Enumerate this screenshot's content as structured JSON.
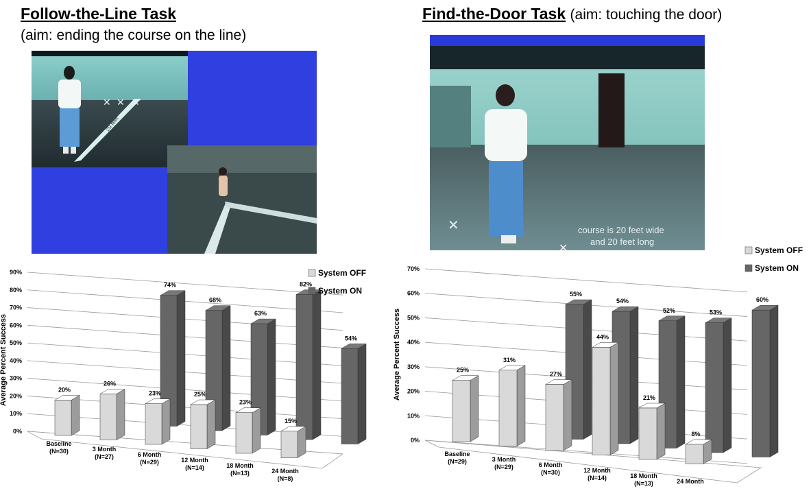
{
  "left": {
    "heading": "Follow-the-Line Task",
    "subheading": "(aim: ending the course on the line)",
    "photo_caption": "20 feet"
  },
  "right": {
    "heading": "Find-the-Door Task",
    "heading_suffix": "(aim: touching the door)",
    "photo_caption_line1": "course is 20 feet wide",
    "photo_caption_line2": "and 20 feet long"
  },
  "chart_data": [
    {
      "type": "bar",
      "title": "",
      "xlabel": "",
      "ylabel": "Average Percent Success",
      "ylim": [
        0,
        90
      ],
      "yticks": [
        "0%",
        "10%",
        "20%",
        "30%",
        "40%",
        "50%",
        "60%",
        "70%",
        "80%",
        "90%"
      ],
      "categories": [
        [
          "Baseline",
          "(N=30)"
        ],
        [
          "3 Month",
          "(N=27)"
        ],
        [
          "6 Month",
          "(N=29)"
        ],
        [
          "12 Month",
          "(N=14)"
        ],
        [
          "18 Month",
          "(N=13)"
        ],
        [
          "24 Month",
          "(N=8)"
        ]
      ],
      "legend_position": "top-right",
      "grid": true,
      "series": [
        {
          "name": "System OFF",
          "color": "#d9d9d9",
          "values": [
            20,
            26,
            23,
            25,
            23,
            15
          ],
          "labels": [
            "20%",
            "26%",
            "23%",
            "25%",
            "23%",
            "15%"
          ]
        },
        {
          "name": "System ON",
          "color": "#666666",
          "values": [
            null,
            74,
            68,
            63,
            82,
            54
          ],
          "labels": [
            "",
            "74%",
            "68%",
            "63%",
            "82%",
            "54%"
          ]
        }
      ]
    },
    {
      "type": "bar",
      "title": "",
      "xlabel": "",
      "ylabel": "Average Percent Success",
      "ylim": [
        0,
        70
      ],
      "yticks": [
        "0%",
        "10%",
        "20%",
        "30%",
        "40%",
        "50%",
        "60%",
        "70%"
      ],
      "categories": [
        [
          "Baseline",
          "(N=29)"
        ],
        [
          "3 Month",
          "(N=29)"
        ],
        [
          "6 Month",
          "(N=30)"
        ],
        [
          "12 Month",
          "(N=14)"
        ],
        [
          "18 Month",
          "(N=13)"
        ],
        [
          "24 Month",
          ""
        ]
      ],
      "legend_position": "top-right",
      "grid": true,
      "series": [
        {
          "name": "System OFF",
          "color": "#d9d9d9",
          "values": [
            25,
            31,
            27,
            44,
            21,
            8
          ],
          "labels": [
            "25%",
            "31%",
            "27%",
            "44%",
            "21%",
            "8%"
          ]
        },
        {
          "name": "System ON",
          "color": "#666666",
          "values": [
            null,
            55,
            54,
            52,
            53,
            60
          ],
          "labels": [
            "",
            "55%",
            "54%",
            "52%",
            "53%",
            "60%"
          ]
        }
      ]
    }
  ]
}
